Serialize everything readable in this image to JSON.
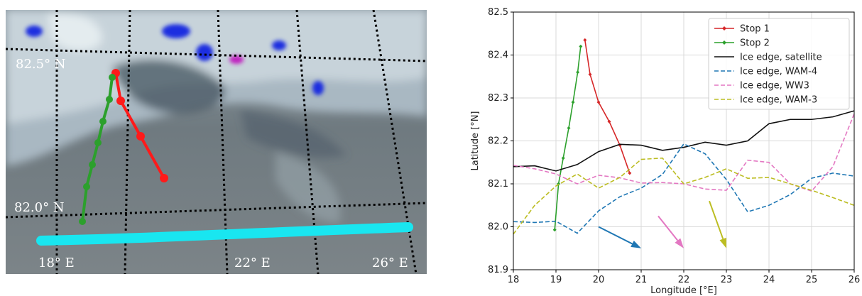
{
  "map": {
    "lat_labels": [
      "82.5° N",
      "82.0° N"
    ],
    "lon_labels": [
      "18° E",
      "22° E",
      "26° E"
    ],
    "colors": {
      "stop1": "#ff1a1a",
      "stop2": "#2ca02c",
      "ice_edge": "#19e6f0"
    }
  },
  "chart_data": {
    "type": "line",
    "xlabel": "Longitude [°E]",
    "ylabel": "Latitude [°N]",
    "xlim": [
      18,
      26
    ],
    "ylim": [
      81.9,
      82.5
    ],
    "xticks": [
      18,
      19,
      20,
      21,
      22,
      23,
      24,
      25,
      26
    ],
    "yticks": [
      81.9,
      82.0,
      82.1,
      82.2,
      82.3,
      82.4,
      82.5
    ],
    "grid": true,
    "legend": "top-right",
    "series": [
      {
        "name": "Stop 1",
        "color": "#d62728",
        "style": "solid-marker",
        "x": [
          19.68,
          19.8,
          20.0,
          20.25,
          20.5,
          20.73
        ],
        "y": [
          82.435,
          82.355,
          82.29,
          82.245,
          82.19,
          82.125
        ]
      },
      {
        "name": "Stop 2",
        "color": "#2ca02c",
        "style": "solid-marker",
        "x": [
          18.97,
          19.06,
          19.17,
          19.3,
          19.4,
          19.51,
          19.58
        ],
        "y": [
          81.993,
          82.1,
          82.16,
          82.23,
          82.29,
          82.36,
          82.42
        ]
      },
      {
        "name": "Ice edge, satellite",
        "color": "#111111",
        "style": "solid",
        "x": [
          18,
          18.5,
          19,
          19.5,
          20,
          20.5,
          21,
          21.5,
          22,
          22.5,
          23,
          23.5,
          24,
          24.5,
          25,
          25.5,
          26
        ],
        "y": [
          82.14,
          82.142,
          82.13,
          82.145,
          82.175,
          82.192,
          82.19,
          82.178,
          82.185,
          82.197,
          82.19,
          82.2,
          82.24,
          82.25,
          82.25,
          82.256,
          82.27
        ]
      },
      {
        "name": "Ice edge, WAM-4",
        "color": "#1f77b4",
        "style": "dashed",
        "x": [
          18,
          18.5,
          19,
          19.5,
          20,
          20.5,
          21,
          21.5,
          22,
          22.5,
          23,
          23.5,
          24,
          24.5,
          25,
          25.5,
          26
        ],
        "y": [
          82.012,
          82.01,
          82.013,
          81.985,
          82.037,
          82.07,
          82.09,
          82.122,
          82.193,
          82.17,
          82.11,
          82.035,
          82.05,
          82.075,
          82.113,
          82.125,
          82.118
        ]
      },
      {
        "name": "Ice edge, WW3",
        "color": "#e377c2",
        "style": "dashed",
        "x": [
          18,
          18.5,
          19,
          19.5,
          20,
          20.5,
          21,
          21.5,
          22,
          22.5,
          23,
          23.5,
          24,
          24.5,
          25,
          25.5,
          26
        ],
        "y": [
          82.143,
          82.135,
          82.123,
          82.1,
          82.12,
          82.114,
          82.102,
          82.103,
          82.1,
          82.088,
          82.085,
          82.155,
          82.15,
          82.1,
          82.083,
          82.14,
          82.263
        ]
      },
      {
        "name": "Ice edge, WAM-3",
        "color": "#bcbd22",
        "style": "dashed",
        "x": [
          18,
          18.5,
          19,
          19.5,
          20,
          20.5,
          21,
          21.5,
          22,
          22.5,
          23,
          23.5,
          24,
          24.5,
          25,
          25.5,
          26
        ],
        "y": [
          81.983,
          82.05,
          82.095,
          82.123,
          82.09,
          82.115,
          82.157,
          82.16,
          82.1,
          82.115,
          82.135,
          82.113,
          82.115,
          82.1,
          82.085,
          82.068,
          82.05
        ]
      }
    ],
    "arrows": [
      {
        "color": "#1f77b4",
        "from": [
          20.0,
          82.0
        ],
        "to": [
          21.0,
          81.95
        ]
      },
      {
        "color": "#e377c2",
        "from": [
          21.4,
          82.025
        ],
        "to": [
          22.0,
          81.95
        ]
      },
      {
        "color": "#bcbd22",
        "from": [
          22.6,
          82.06
        ],
        "to": [
          23.0,
          81.95
        ]
      }
    ]
  }
}
